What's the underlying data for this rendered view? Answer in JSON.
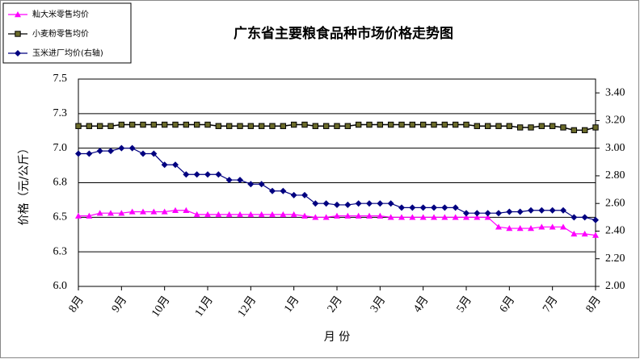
{
  "chart_data": {
    "type": "line",
    "title": "广东省主要粮食品种市场价格走势图",
    "y_label": "价格（元/公斤）",
    "x_label": "月 份",
    "categories": [
      "8月",
      null,
      null,
      null,
      "9月",
      null,
      null,
      null,
      "10月",
      null,
      null,
      null,
      "11月",
      null,
      null,
      null,
      "12月",
      null,
      null,
      null,
      "1月",
      null,
      null,
      null,
      "2月",
      null,
      null,
      null,
      "3月",
      null,
      null,
      null,
      "4月",
      null,
      null,
      null,
      "5月",
      null,
      null,
      null,
      "6月",
      null,
      null,
      null,
      "7月",
      null,
      null,
      null,
      "8月"
    ],
    "ylim": [
      6.0,
      7.5
    ],
    "yticks": [
      {
        "value": 6.0,
        "label": "6.0"
      },
      {
        "value": 6.25,
        "label": "6.3"
      },
      {
        "value": 6.5,
        "label": "6.5"
      },
      {
        "value": 6.75,
        "label": "6.8"
      },
      {
        "value": 7.0,
        "label": "7.0"
      },
      {
        "value": 7.25,
        "label": "7.3"
      },
      {
        "value": 7.5,
        "label": "7.5"
      }
    ],
    "y2lim": [
      2.0,
      3.5
    ],
    "y2ticks": [
      {
        "value": 2.0,
        "label": "2.00"
      },
      {
        "value": 2.2,
        "label": "2.20"
      },
      {
        "value": 2.4,
        "label": "2.40"
      },
      {
        "value": 2.6,
        "label": "2.60"
      },
      {
        "value": 2.8,
        "label": "2.80"
      },
      {
        "value": 3.0,
        "label": "3.00"
      },
      {
        "value": 3.2,
        "label": "3.20"
      },
      {
        "value": 3.4,
        "label": "3.40"
      }
    ],
    "grid": true,
    "legend": "top-left",
    "series": [
      {
        "name": "籼大米零售均价",
        "color": "#ff00ff",
        "marker": "triangle",
        "values": [
          6.51,
          6.51,
          6.53,
          6.53,
          6.53,
          6.54,
          6.54,
          6.54,
          6.54,
          6.55,
          6.55,
          6.52,
          6.52,
          6.52,
          6.52,
          6.52,
          6.52,
          6.52,
          6.52,
          6.52,
          6.52,
          6.51,
          6.5,
          6.5,
          6.51,
          6.51,
          6.51,
          6.51,
          6.51,
          6.5,
          6.5,
          6.5,
          6.5,
          6.5,
          6.5,
          6.5,
          6.5,
          6.5,
          6.5,
          6.43,
          6.42,
          6.42,
          6.42,
          6.43,
          6.43,
          6.43,
          6.38,
          6.38,
          6.37
        ]
      },
      {
        "name": "小麦粉零售均价",
        "color": "#000000",
        "marker": "square",
        "values": [
          7.16,
          7.16,
          7.16,
          7.16,
          7.17,
          7.17,
          7.17,
          7.17,
          7.17,
          7.17,
          7.17,
          7.17,
          7.17,
          7.16,
          7.16,
          7.16,
          7.16,
          7.16,
          7.16,
          7.16,
          7.17,
          7.17,
          7.16,
          7.16,
          7.16,
          7.16,
          7.17,
          7.17,
          7.17,
          7.17,
          7.17,
          7.17,
          7.17,
          7.17,
          7.17,
          7.17,
          7.17,
          7.16,
          7.16,
          7.16,
          7.16,
          7.15,
          7.15,
          7.16,
          7.16,
          7.15,
          7.13,
          7.13,
          7.15
        ]
      },
      {
        "name": "玉米进厂均价(右轴)",
        "color": "#000080",
        "marker": "diamond",
        "axis": "y2",
        "values": [
          2.96,
          2.96,
          2.98,
          2.98,
          3.0,
          3.0,
          2.96,
          2.96,
          2.88,
          2.88,
          2.81,
          2.81,
          2.81,
          2.81,
          2.77,
          2.77,
          2.74,
          2.74,
          2.69,
          2.69,
          2.66,
          2.66,
          2.6,
          2.6,
          2.59,
          2.59,
          2.6,
          2.6,
          2.6,
          2.6,
          2.57,
          2.57,
          2.57,
          2.57,
          2.57,
          2.57,
          2.53,
          2.53,
          2.53,
          2.53,
          2.54,
          2.54,
          2.55,
          2.55,
          2.55,
          2.55,
          2.5,
          2.5,
          2.48
        ]
      }
    ]
  }
}
